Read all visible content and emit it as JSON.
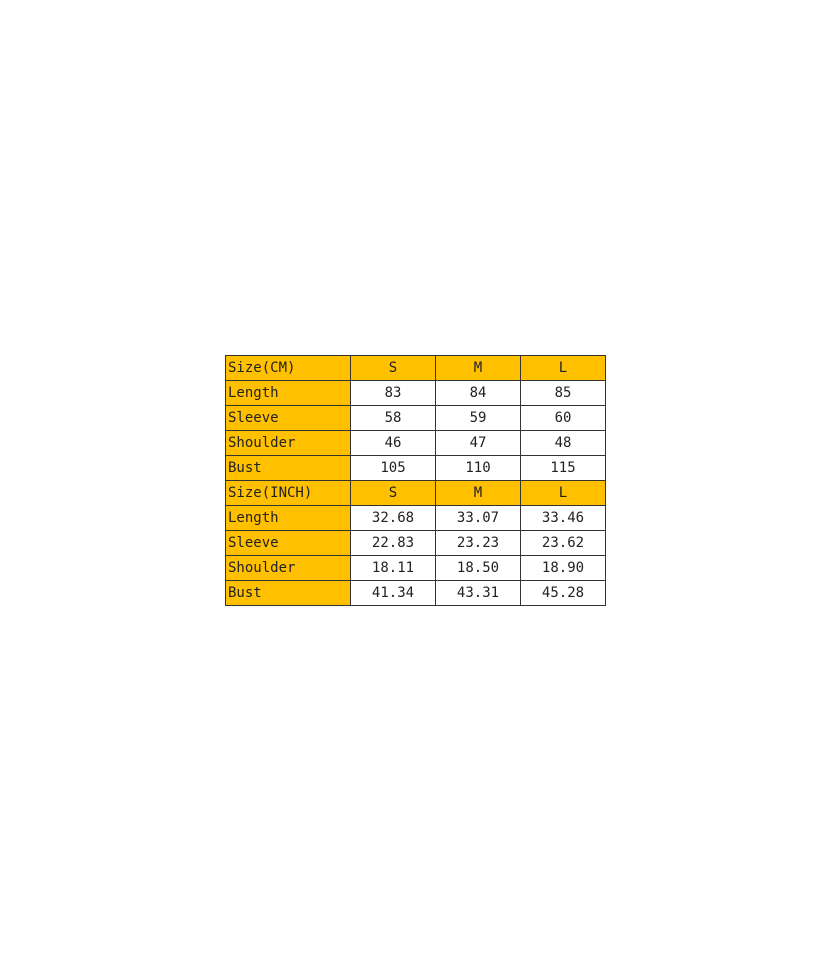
{
  "colors": {
    "header_fill": "#FFC000",
    "cell_fill": "#FFFFFF",
    "border": "#333333"
  },
  "sections": [
    {
      "header": {
        "label": "Size(CM)",
        "sizes": [
          "S",
          "M",
          "L"
        ]
      },
      "rows": [
        {
          "label": "Length",
          "values": [
            "83",
            "84",
            "85"
          ]
        },
        {
          "label": "Sleeve",
          "values": [
            "58",
            "59",
            "60"
          ]
        },
        {
          "label": "Shoulder",
          "values": [
            "46",
            "47",
            "48"
          ]
        },
        {
          "label": "Bust",
          "values": [
            "105",
            "110",
            "115"
          ]
        }
      ]
    },
    {
      "header": {
        "label": "Size(INCH)",
        "sizes": [
          "S",
          "M",
          "L"
        ]
      },
      "rows": [
        {
          "label": "Length",
          "values": [
            "32.68",
            "33.07",
            "33.46"
          ]
        },
        {
          "label": "Sleeve",
          "values": [
            "22.83",
            "23.23",
            "23.62"
          ]
        },
        {
          "label": "Shoulder",
          "values": [
            "18.11",
            "18.50",
            "18.90"
          ]
        },
        {
          "label": "Bust",
          "values": [
            "41.34",
            "43.31",
            "45.28"
          ]
        }
      ]
    }
  ]
}
